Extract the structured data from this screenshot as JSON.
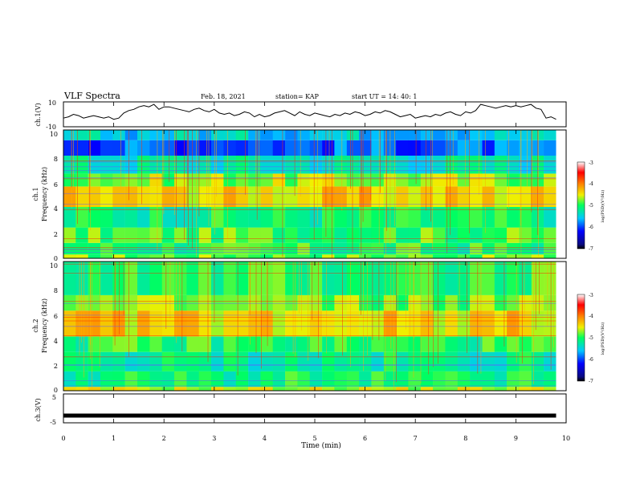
{
  "header": {
    "title": "VLF Spectra",
    "date": "Feb. 18, 2021",
    "station": "station= KAP",
    "start": "start  UT =   14: 40: 1"
  },
  "chart_data": [
    {
      "type": "line",
      "panel": "ch1-waveform",
      "ylabel": "ch.1(V)",
      "ylim": [
        -10,
        10
      ],
      "y_ticks": [
        "10",
        "-10"
      ],
      "xlim": [
        0,
        10
      ],
      "x": [
        0,
        0.1,
        0.2,
        0.3,
        0.4,
        0.5,
        0.6,
        0.7,
        0.8,
        0.9,
        1.0,
        1.1,
        1.2,
        1.3,
        1.4,
        1.5,
        1.6,
        1.7,
        1.8,
        1.9,
        2.0,
        2.1,
        2.2,
        2.3,
        2.4,
        2.5,
        2.6,
        2.7,
        2.8,
        2.9,
        3.0,
        3.1,
        3.2,
        3.3,
        3.4,
        3.5,
        3.6,
        3.7,
        3.8,
        3.9,
        4.0,
        4.1,
        4.2,
        4.3,
        4.4,
        4.5,
        4.6,
        4.7,
        4.8,
        4.9,
        5.0,
        5.1,
        5.2,
        5.3,
        5.4,
        5.5,
        5.6,
        5.7,
        5.8,
        5.9,
        6.0,
        6.1,
        6.2,
        6.3,
        6.4,
        6.5,
        6.6,
        6.7,
        6.8,
        6.9,
        7.0,
        7.1,
        7.2,
        7.3,
        7.4,
        7.5,
        7.6,
        7.7,
        7.8,
        7.9,
        8.0,
        8.1,
        8.2,
        8.3,
        8.4,
        8.5,
        8.6,
        8.7,
        8.8,
        8.9,
        9.0,
        9.1,
        9.2,
        9.3,
        9.4,
        9.5,
        9.6,
        9.7,
        9.8
      ],
      "values": [
        -3,
        -2,
        0,
        -1,
        -3,
        -2,
        -1,
        -2,
        -3,
        -2,
        -4,
        -3,
        1,
        3,
        4,
        6,
        7,
        6,
        8,
        4,
        6,
        6,
        5,
        4,
        3,
        2,
        4,
        5,
        3,
        2,
        4,
        1,
        0,
        1,
        -1,
        0,
        2,
        1,
        -2,
        0,
        -2,
        -1,
        1,
        2,
        3,
        1,
        -1,
        2,
        0,
        -1,
        1,
        0,
        -1,
        -2,
        0,
        -1,
        1,
        0,
        2,
        1,
        -1,
        0,
        2,
        1,
        3,
        2,
        0,
        -2,
        -1,
        0,
        -3,
        -2,
        -1,
        -2,
        0,
        -1,
        1,
        2,
        0,
        -1,
        2,
        1,
        3,
        8,
        7,
        6,
        5,
        6,
        7,
        6,
        7,
        6,
        7,
        8,
        5,
        4,
        -3,
        -2,
        -4
      ]
    },
    {
      "type": "heatmap",
      "panel": "ch1-spectrogram",
      "ylabel": "Frequency (kHz)",
      "channel_label": "ch.1",
      "xlim": [
        0,
        10
      ],
      "ylim": [
        0,
        10
      ],
      "y_ticks": [
        "0",
        "2",
        "4",
        "6",
        "8",
        "10"
      ],
      "colorbar": {
        "label": "log(PSD)(V²/Hz)",
        "range": [
          -7,
          -3
        ],
        "ticks": [
          "-3",
          "-4",
          "-5",
          "-6",
          "-7"
        ]
      },
      "bands": [
        {
          "freq": [
            0.0,
            0.3
          ],
          "level": -4.8
        },
        {
          "freq": [
            0.3,
            1.2
          ],
          "level": -5.0
        },
        {
          "freq": [
            1.2,
            2.4
          ],
          "level": -4.9
        },
        {
          "freq": [
            2.4,
            4.0
          ],
          "level": -5.1
        },
        {
          "freq": [
            4.0,
            5.6
          ],
          "level": -4.4
        },
        {
          "freq": [
            5.6,
            6.6
          ],
          "level": -4.7
        },
        {
          "freq": [
            6.6,
            8.0
          ],
          "level": -5.3
        },
        {
          "freq": [
            8.0,
            9.2
          ],
          "level": -5.9
        },
        {
          "freq": [
            9.2,
            10.0
          ],
          "level": -5.5
        }
      ]
    },
    {
      "type": "heatmap",
      "panel": "ch2-spectrogram",
      "ylabel": "Frequency (kHz)",
      "channel_label": "ch.2",
      "xlim": [
        0,
        10
      ],
      "ylim": [
        0,
        10
      ],
      "y_ticks": [
        "0",
        "2",
        "4",
        "6",
        "8",
        "10"
      ],
      "colorbar": {
        "label": "log(PSD)(V²/Hz)",
        "range": [
          -7,
          -3
        ],
        "ticks": [
          "-3",
          "-4",
          "-5",
          "-6",
          "-7"
        ]
      },
      "bands": [
        {
          "freq": [
            0.0,
            0.3
          ],
          "level": -4.6
        },
        {
          "freq": [
            0.3,
            1.5
          ],
          "level": -5.1
        },
        {
          "freq": [
            1.5,
            3.0
          ],
          "level": -5.2
        },
        {
          "freq": [
            3.0,
            4.2
          ],
          "level": -5.0
        },
        {
          "freq": [
            4.2,
            6.2
          ],
          "level": -4.4
        },
        {
          "freq": [
            6.2,
            7.4
          ],
          "level": -4.8
        },
        {
          "freq": [
            7.4,
            10.0
          ],
          "level": -5.0
        }
      ]
    },
    {
      "type": "line",
      "panel": "ch3-waveform",
      "ylabel": "ch.3(V)",
      "ylim": [
        -5,
        5
      ],
      "y_ticks": [
        "5",
        "-5"
      ],
      "xlim": [
        0,
        10
      ],
      "x": [
        0,
        9.8
      ],
      "values": [
        -2.5,
        -2.5
      ],
      "xlabel": "Time (min)",
      "x_ticks": [
        "0",
        "1",
        "2",
        "3",
        "4",
        "5",
        "6",
        "7",
        "8",
        "9",
        "10"
      ]
    }
  ]
}
